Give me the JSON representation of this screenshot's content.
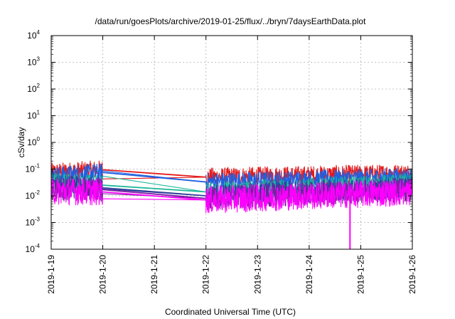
{
  "chart_data": {
    "type": "line",
    "title": "/data/run/goesPlots/archive/2019-01-25/flux/../bryn/7daysEarthData.plot",
    "xlabel": "Coordinated Universal Time (UTC)",
    "ylabel": "cSv/day",
    "xlim": [
      "2019-01-19",
      "2019-01-26"
    ],
    "ylim": [
      0.0001,
      10000
    ],
    "yscale": "log",
    "grid": true,
    "legend": "none",
    "x_ticks": [
      "2019-1-19",
      "2019-1-20",
      "2019-1-21",
      "2019-1-22",
      "2019-1-23",
      "2019-1-24",
      "2019-1-25",
      "2019-1-26"
    ],
    "y_ticks": [
      {
        "base": "10",
        "exp": "-4"
      },
      {
        "base": "10",
        "exp": "-3"
      },
      {
        "base": "10",
        "exp": "-2"
      },
      {
        "base": "10",
        "exp": "-1"
      },
      {
        "base": "10",
        "exp": "0"
      },
      {
        "base": "10",
        "exp": "1"
      },
      {
        "base": "10",
        "exp": "2"
      },
      {
        "base": "10",
        "exp": "3"
      },
      {
        "base": "10",
        "exp": "4"
      }
    ],
    "data_gap": [
      "2019-01-20",
      "2019-01-22"
    ],
    "series": [
      {
        "color": "#e41a1c",
        "x": [
          "2019-01-19",
          "2019-01-20",
          "2019-01-22",
          "2019-01-26"
        ],
        "y": [
          0.075,
          0.095,
          0.05,
          0.07
        ]
      },
      {
        "color": "#1f5fe0",
        "x": [
          "2019-01-19",
          "2019-01-20",
          "2019-01-22",
          "2019-01-26"
        ],
        "y": [
          0.055,
          0.075,
          0.033,
          0.05
        ]
      },
      {
        "color": "#1fb89a",
        "x": [
          "2019-01-19",
          "2019-01-20",
          "2019-01-22",
          "2019-01-26"
        ],
        "y": [
          0.03,
          0.025,
          0.014,
          0.028
        ]
      },
      {
        "color": "#2c3e9a",
        "x": [
          "2019-01-19",
          "2019-01-20",
          "2019-01-22",
          "2019-01-26"
        ],
        "y": [
          0.022,
          0.02,
          0.01,
          0.02
        ]
      },
      {
        "color": "#7a1fa2",
        "x": [
          "2019-01-19",
          "2019-01-20",
          "2019-01-22",
          "2019-01-26"
        ],
        "y": [
          0.018,
          0.017,
          0.008,
          0.017
        ]
      },
      {
        "color": "#ff00ff",
        "x": [
          "2019-01-19",
          "2019-01-20",
          "2019-01-22",
          "2019-01-26"
        ],
        "y": [
          0.015,
          0.014,
          0.007,
          0.014
        ]
      }
    ],
    "dip": {
      "x": "2019-01-24 19:00",
      "y": 0.0001,
      "color": "#ff00ff"
    }
  }
}
